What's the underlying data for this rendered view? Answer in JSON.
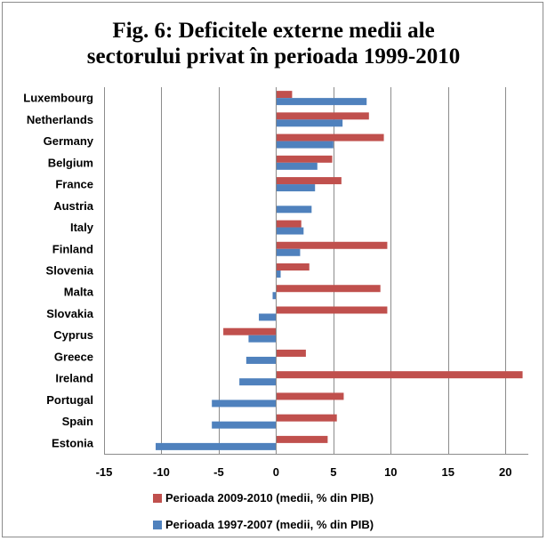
{
  "chart_data": {
    "type": "bar",
    "orientation": "horizontal",
    "title_lines": [
      "Fig. 6: Deficitele externe medii ale",
      "sectorului privat în perioada 1999-2010"
    ],
    "categories": [
      "Luxembourg",
      "Netherlands",
      "Germany",
      "Belgium",
      "France",
      "Austria",
      "Italy",
      "Finland",
      "Slovenia",
      "Malta",
      "Slovakia",
      "Cyprus",
      "Greece",
      "Ireland",
      "Portugal",
      "Spain",
      "Estonia"
    ],
    "series": [
      {
        "name": "Perioada 2009-2010 (medii, % din PIB)",
        "color": "#c0504d",
        "values": [
          1.4,
          8.1,
          9.4,
          4.9,
          5.7,
          0.0,
          2.2,
          9.7,
          2.9,
          9.1,
          9.7,
          -4.6,
          2.6,
          21.5,
          5.9,
          5.3,
          4.5
        ]
      },
      {
        "name": "Perioada 1997-2007 (medii, % din PIB)",
        "color": "#4f81bd",
        "values": [
          7.9,
          5.8,
          5.0,
          3.6,
          3.4,
          3.1,
          2.4,
          2.1,
          0.4,
          -0.3,
          -1.5,
          -2.4,
          -2.6,
          -3.2,
          -5.6,
          -5.6,
          -10.5
        ]
      }
    ],
    "xlim": [
      -15,
      22
    ],
    "xticks": [
      -15,
      -10,
      -5,
      0,
      5,
      10,
      15,
      20
    ],
    "grid": true,
    "legend_position": "bottom"
  }
}
